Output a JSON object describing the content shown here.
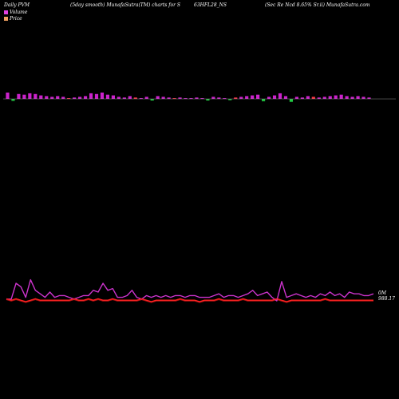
{
  "header": {
    "left": "Daily PVM",
    "center": "(5day smooth) MunafaSutra(TM) charts for S",
    "ticker": "63HFL28_NS",
    "right": "(Sec Re   Ncd 8.65% Sr.ii) MunafaSutra.com"
  },
  "legend": [
    {
      "label": "Volume",
      "color": "#e040e0"
    },
    {
      "label": "Price",
      "color": "#f0a060"
    }
  ],
  "colors": {
    "volume_up": "#cc22cc",
    "volume_down": "#22cc44",
    "volume_neutral": "#ff3344",
    "baseline": "#888888",
    "volume_line": "#cc33cc",
    "price_line": "#ff2222",
    "price_line_dark": "#aa1111"
  },
  "chart_data": [
    {
      "type": "bar",
      "series": [
        {
          "name": "Volume",
          "values": [
            9,
            3,
            7,
            6,
            8,
            7,
            5,
            4,
            3,
            4,
            3,
            1,
            2,
            3,
            4,
            8,
            7,
            9,
            6,
            5,
            3,
            2,
            4,
            2,
            1,
            3,
            2,
            4,
            3,
            2,
            1,
            2,
            1,
            1,
            2,
            1,
            2,
            3,
            2,
            1,
            1,
            2,
            3,
            4,
            5,
            6,
            4,
            3,
            5,
            8,
            4,
            6,
            3,
            2,
            4,
            3,
            2,
            3,
            4,
            5,
            6,
            4,
            3,
            4,
            3,
            2
          ],
          "sign": [
            1,
            -1,
            1,
            1,
            1,
            1,
            1,
            1,
            1,
            1,
            1,
            0,
            1,
            1,
            1,
            1,
            1,
            1,
            1,
            1,
            1,
            1,
            1,
            0,
            1,
            1,
            -1,
            1,
            1,
            1,
            0,
            1,
            1,
            1,
            1,
            1,
            -1,
            1,
            1,
            1,
            -1,
            0,
            1,
            1,
            1,
            1,
            -1,
            1,
            1,
            1,
            1,
            -1,
            1,
            1,
            1,
            0,
            1,
            1,
            1,
            1,
            1,
            1,
            1,
            1,
            1,
            1
          ]
        }
      ]
    },
    {
      "type": "line",
      "end_labels": [
        "0M",
        "988.17"
      ],
      "series": [
        {
          "name": "Volume",
          "values": [
            1,
            1,
            10,
            8,
            2,
            12,
            6,
            4,
            2,
            5,
            2,
            3,
            3,
            2,
            1,
            2,
            3,
            3,
            6,
            5,
            10,
            6,
            7,
            2,
            2,
            3,
            6,
            2,
            1,
            3,
            2,
            3,
            2,
            3,
            2,
            3,
            3,
            2,
            3,
            3,
            2,
            2,
            2,
            3,
            4,
            2,
            3,
            3,
            2,
            3,
            4,
            6,
            3,
            4,
            5,
            2,
            0,
            11,
            2,
            3,
            4,
            3,
            2,
            3,
            2,
            4,
            3,
            5,
            3,
            4,
            2,
            5,
            4,
            4,
            3,
            3,
            4
          ]
        },
        {
          "name": "Price",
          "values": [
            2,
            1,
            2,
            1,
            0,
            1,
            2,
            1,
            1,
            1,
            1,
            1,
            1,
            1,
            2,
            1,
            1,
            2,
            1,
            2,
            1,
            1,
            2,
            1,
            1,
            1,
            1,
            1,
            2,
            1,
            0,
            1,
            1,
            1,
            1,
            1,
            2,
            1,
            1,
            1,
            0,
            1,
            1,
            1,
            2,
            1,
            1,
            1,
            1,
            2,
            1,
            1,
            1,
            1,
            1,
            1,
            2,
            1,
            0,
            1,
            1,
            1,
            1,
            1,
            1,
            1,
            2,
            1,
            1,
            1,
            1,
            1,
            1,
            1,
            1,
            1,
            1
          ]
        }
      ]
    }
  ]
}
